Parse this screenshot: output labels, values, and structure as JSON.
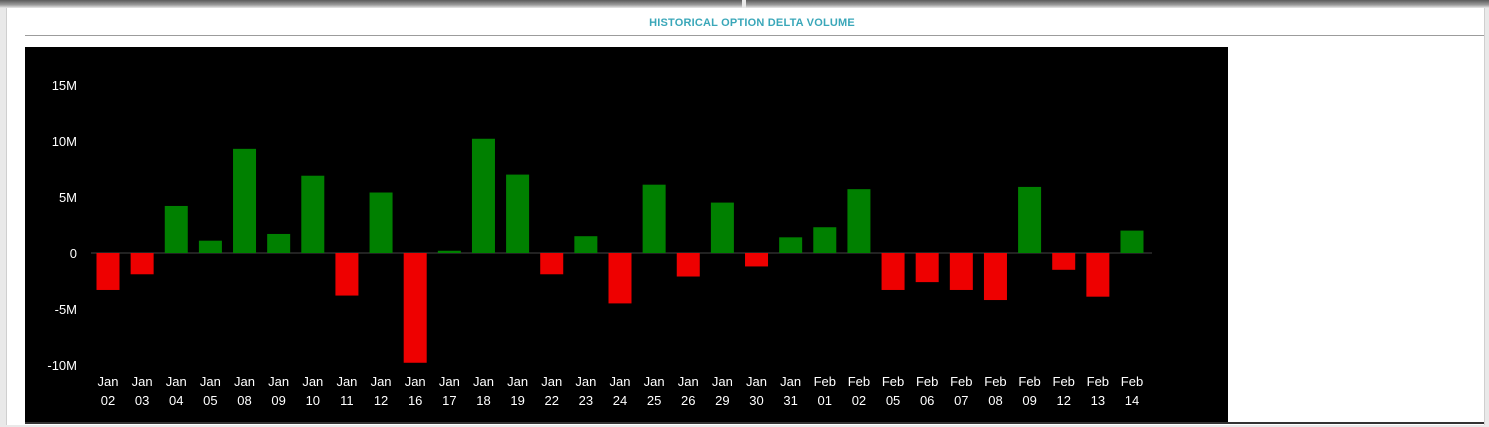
{
  "panel": {
    "title": "HISTORICAL OPTION DELTA VOLUME"
  },
  "colors": {
    "background": "#000000",
    "positive": "#008000",
    "negative": "#ee0000",
    "title": "#3aa7b9",
    "text": "#ffffff"
  },
  "chart_data": {
    "type": "bar",
    "title": "HISTORICAL OPTION DELTA VOLUME",
    "xlabel": "",
    "ylabel": "",
    "ylim": [
      -10000000,
      15000000
    ],
    "yticks": [
      {
        "value": 15000000,
        "label": "15M"
      },
      {
        "value": 10000000,
        "label": "10M"
      },
      {
        "value": 5000000,
        "label": "5M"
      },
      {
        "value": 0,
        "label": "0"
      },
      {
        "value": -5000000,
        "label": "-5M"
      },
      {
        "value": -10000000,
        "label": "-10M"
      }
    ],
    "grid": false,
    "legend": "none",
    "categories": [
      [
        "Jan",
        "02"
      ],
      [
        "Jan",
        "03"
      ],
      [
        "Jan",
        "04"
      ],
      [
        "Jan",
        "05"
      ],
      [
        "Jan",
        "08"
      ],
      [
        "Jan",
        "09"
      ],
      [
        "Jan",
        "10"
      ],
      [
        "Jan",
        "11"
      ],
      [
        "Jan",
        "12"
      ],
      [
        "Jan",
        "16"
      ],
      [
        "Jan",
        "17"
      ],
      [
        "Jan",
        "18"
      ],
      [
        "Jan",
        "19"
      ],
      [
        "Jan",
        "22"
      ],
      [
        "Jan",
        "23"
      ],
      [
        "Jan",
        "24"
      ],
      [
        "Jan",
        "25"
      ],
      [
        "Jan",
        "26"
      ],
      [
        "Jan",
        "29"
      ],
      [
        "Jan",
        "30"
      ],
      [
        "Jan",
        "31"
      ],
      [
        "Feb",
        "01"
      ],
      [
        "Feb",
        "02"
      ],
      [
        "Feb",
        "05"
      ],
      [
        "Feb",
        "06"
      ],
      [
        "Feb",
        "07"
      ],
      [
        "Feb",
        "08"
      ],
      [
        "Feb",
        "09"
      ],
      [
        "Feb",
        "12"
      ],
      [
        "Feb",
        "13"
      ],
      [
        "Feb",
        "14"
      ]
    ],
    "values": [
      -3300000,
      -1900000,
      4200000,
      1100000,
      9300000,
      1700000,
      6900000,
      -3800000,
      5400000,
      -9800000,
      200000,
      10200000,
      7000000,
      -1900000,
      1500000,
      -4500000,
      6100000,
      -2100000,
      4500000,
      -1200000,
      1400000,
      2300000,
      5700000,
      -3300000,
      -2600000,
      -3300000,
      -4200000,
      5900000,
      -1500000,
      -3900000,
      2000000
    ]
  }
}
